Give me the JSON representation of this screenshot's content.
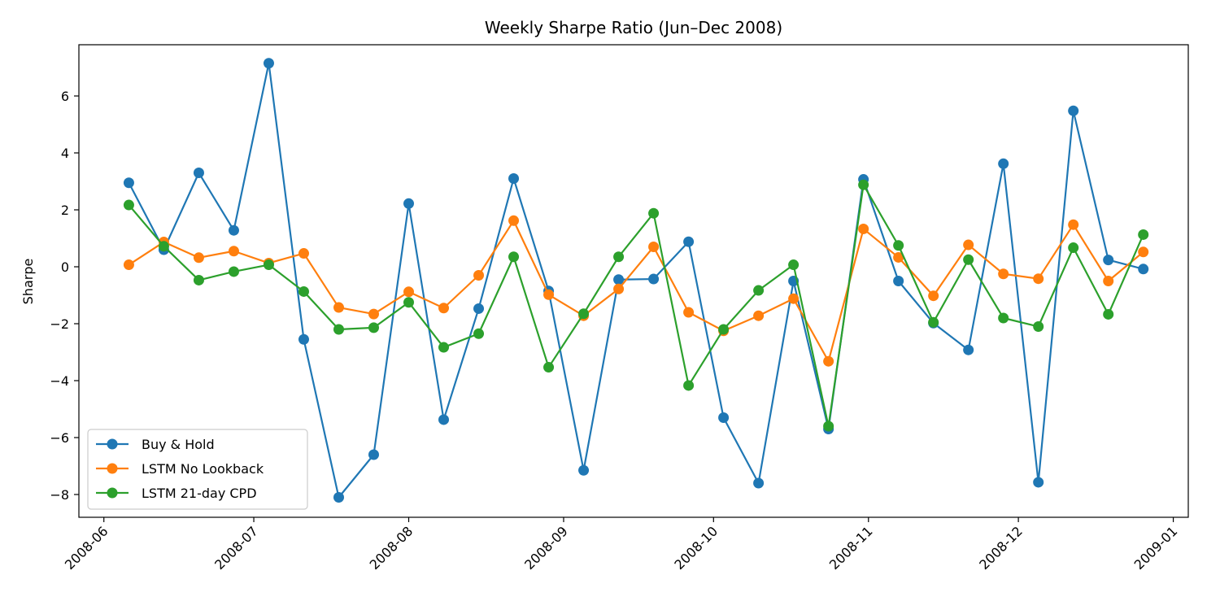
{
  "chart_data": {
    "type": "line",
    "title": "Weekly Sharpe Ratio (Jun–Dec 2008)",
    "xlabel": "",
    "ylabel": "Sharpe",
    "x_axis_type": "date",
    "xlim": [
      "2008-05-27",
      "2009-01-04"
    ],
    "ylim": [
      -8.8,
      7.8
    ],
    "x_ticks": [
      "2008-06",
      "2008-07",
      "2008-08",
      "2008-09",
      "2008-10",
      "2008-11",
      "2008-12",
      "2009-01"
    ],
    "y_ticks": [
      -8,
      -6,
      -4,
      -2,
      0,
      2,
      4,
      6
    ],
    "grid": false,
    "legend_position": "lower-left",
    "x": [
      "2008-06-06",
      "2008-06-13",
      "2008-06-20",
      "2008-06-27",
      "2008-07-04",
      "2008-07-11",
      "2008-07-18",
      "2008-07-25",
      "2008-08-01",
      "2008-08-08",
      "2008-08-15",
      "2008-08-22",
      "2008-08-29",
      "2008-09-05",
      "2008-09-12",
      "2008-09-19",
      "2008-09-26",
      "2008-10-03",
      "2008-10-10",
      "2008-10-17",
      "2008-10-24",
      "2008-10-31",
      "2008-11-07",
      "2008-11-14",
      "2008-11-21",
      "2008-11-28",
      "2008-12-05",
      "2008-12-12",
      "2008-12-19",
      "2008-12-26"
    ],
    "series": [
      {
        "name": "Buy & Hold",
        "color": "#1f77b4",
        "values": [
          2.95,
          0.6,
          3.3,
          1.28,
          7.15,
          -2.55,
          -8.1,
          -6.6,
          2.22,
          -5.37,
          -1.47,
          3.1,
          -0.85,
          -7.15,
          -0.45,
          -0.43,
          0.88,
          -5.3,
          -7.6,
          -0.5,
          -5.7,
          3.07,
          -0.5,
          -1.98,
          -2.92,
          3.62,
          -7.57,
          5.48,
          0.24,
          -0.08
        ]
      },
      {
        "name": "LSTM No Lookback",
        "color": "#ff7f0e",
        "values": [
          0.07,
          0.87,
          0.32,
          0.55,
          0.13,
          0.47,
          -1.43,
          -1.66,
          -0.88,
          -1.45,
          -0.3,
          1.62,
          -0.98,
          -1.72,
          -0.78,
          0.7,
          -1.6,
          -2.25,
          -1.72,
          -1.12,
          -3.32,
          1.33,
          0.33,
          -1.02,
          0.77,
          -0.25,
          -0.42,
          1.48,
          -0.5,
          0.52
        ]
      },
      {
        "name": "LSTM 21-day CPD",
        "color": "#2ca02c",
        "values": [
          2.17,
          0.72,
          -0.47,
          -0.17,
          0.07,
          -0.87,
          -2.2,
          -2.14,
          -1.25,
          -2.83,
          -2.35,
          0.35,
          -3.53,
          -1.65,
          0.35,
          1.88,
          -4.17,
          -2.2,
          -0.83,
          0.07,
          -5.6,
          2.88,
          0.75,
          -1.95,
          0.25,
          -1.8,
          -2.1,
          0.67,
          -1.67,
          1.13
        ]
      }
    ]
  }
}
